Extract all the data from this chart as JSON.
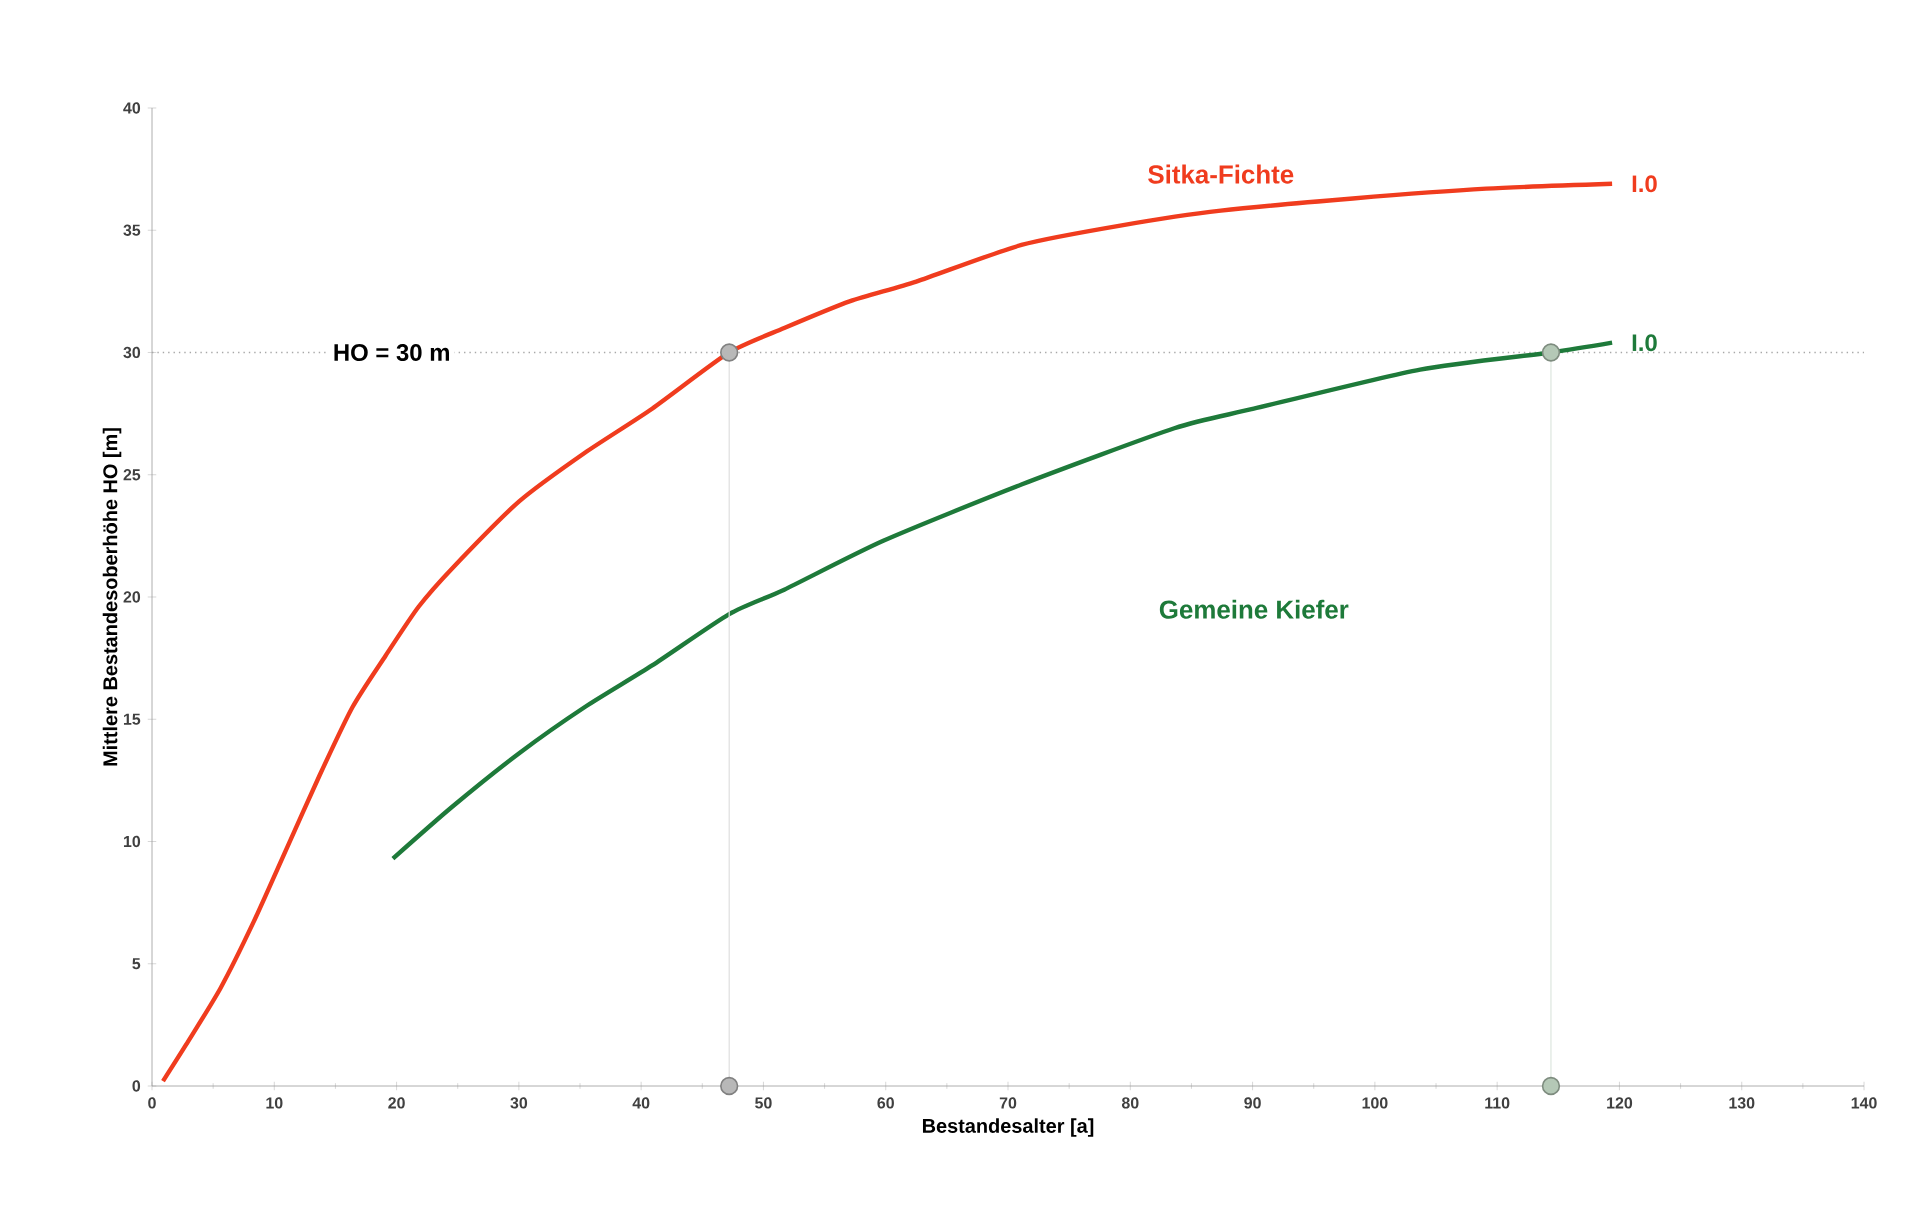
{
  "chart_data": {
    "type": "line",
    "xlabel": "Bestandesalter [a]",
    "ylabel": "Mittlere Bestandesoberhöhe HO [m]",
    "xlim": [
      0,
      140
    ],
    "ylim": [
      0,
      40
    ],
    "xticks": [
      0,
      10,
      20,
      30,
      40,
      50,
      60,
      70,
      80,
      90,
      100,
      110,
      120,
      130,
      140
    ],
    "yticks": [
      0,
      5,
      10,
      15,
      20,
      25,
      30,
      35,
      40
    ],
    "grid": false,
    "line_style": "solid",
    "marker": "none",
    "series": [
      {
        "name": "Sitka-Fichte",
        "color": "#f03c1e",
        "x": [
          0.9,
          2.8,
          5.6,
          8.3,
          11.0,
          13.7,
          16.4,
          19.1,
          21.8,
          24.6,
          30,
          35.4,
          40.9,
          47.2,
          51.7,
          57.1,
          62.5,
          71.1,
          79.3,
          87.4,
          98.2,
          109.1,
          119.4
        ],
        "values": [
          0.2,
          1.7,
          4.0,
          6.7,
          9.7,
          12.7,
          15.5,
          17.6,
          19.6,
          21.2,
          23.9,
          25.9,
          27.7,
          30.0,
          31.0,
          32.1,
          32.9,
          34.4,
          35.2,
          35.8,
          36.3,
          36.7,
          36.9
        ]
      },
      {
        "name": "Gemeine Kiefer",
        "color": "#1e7a3a",
        "x": [
          19.7,
          24.5,
          30,
          35.4,
          40.9,
          47.2,
          51.7,
          59.8,
          71.1,
          83.6,
          90.1,
          103.7,
          114.4,
          119.4
        ],
        "values": [
          9.3,
          11.4,
          13.6,
          15.5,
          17.2,
          19.3,
          20.3,
          22.3,
          24.6,
          26.9,
          27.7,
          29.3,
          30.0,
          30.4
        ]
      },
      {
        "type": "line",
        "color": "#b8b8b8",
        "marker": "circle",
        "x": [
          47.2,
          47.2
        ],
        "values": [
          0,
          30
        ]
      },
      {
        "type": "line",
        "color": "#b4c8b6",
        "marker": "circle",
        "x": [
          114.4,
          114.4
        ],
        "values": [
          0,
          30
        ]
      }
    ],
    "ref_lines": [
      {
        "axis": "y",
        "value": 30,
        "label": "HO = 30 m",
        "color": "#a8a8a8",
        "line_style": "dotted"
      }
    ],
    "annotations": [
      {
        "text": "I.0",
        "x": 119.4,
        "y": 36.9
      },
      {
        "text": "I.0",
        "x": 119.4,
        "y": 30.4
      }
    ]
  }
}
